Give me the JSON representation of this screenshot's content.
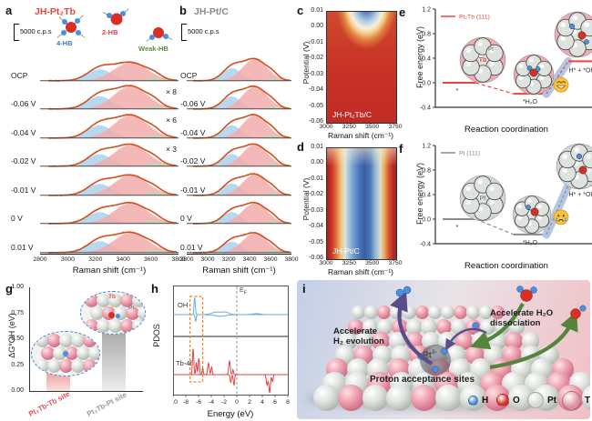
{
  "chart_data": [
    {
      "id": "a",
      "panel": "a",
      "type": "line",
      "title": "JH-Pt₂Tb",
      "title_color": "#e8463c",
      "scale_bar": "5000 c.p.s",
      "molecule_labels": [
        {
          "text": "4-HB",
          "color": "#3a7bd0"
        },
        {
          "text": "2-HB",
          "color": "#e8463c"
        },
        {
          "text": "Weak-HB",
          "color": "#5a8f3c"
        }
      ],
      "series_labels": [
        "OCP",
        "-0.06 V",
        "-0.04 V",
        "-0.02 V",
        "-0.01 V",
        "0 V",
        "0.01 V"
      ],
      "multipliers": [
        "",
        "× 8",
        "× 6",
        "× 3",
        "",
        "",
        ""
      ],
      "components": [
        {
          "name": "4-HB",
          "center": 3230,
          "width": 88,
          "color": "#a9d2ee"
        },
        {
          "name": "2-HB",
          "center": 3455,
          "width": 122,
          "color": "#f2abac"
        },
        {
          "name": "Weak-HB",
          "center": 3625,
          "width": 50,
          "color": "#bcd9ab"
        }
      ],
      "row_amplitudes": [
        [
          0.5,
          0.8,
          0.13
        ],
        [
          0.56,
          1.0,
          0.15
        ],
        [
          0.56,
          1.0,
          0.15
        ],
        [
          0.53,
          0.95,
          0.14
        ],
        [
          0.5,
          0.88,
          0.13
        ],
        [
          0.5,
          0.9,
          0.13
        ],
        [
          0.5,
          0.88,
          0.13
        ]
      ],
      "x_ticks": [
        "2800",
        "3000",
        "3200",
        "3400",
        "3600",
        "3800"
      ],
      "xlabel": "Raman shift (cm⁻¹)",
      "envelope_color": "#d4521e"
    },
    {
      "id": "b",
      "panel": "b",
      "type": "line",
      "title": "JH-Pt/C",
      "title_color": "#8a8a8a",
      "scale_bar": "5000 c.p.s",
      "series_labels": [
        "OCP",
        "-0.06 V",
        "-0.04 V",
        "-0.02 V",
        "-0.01 V",
        "0 V",
        "0.01 V"
      ],
      "multipliers": [
        "",
        "",
        "",
        "",
        "",
        "",
        ""
      ],
      "components": [
        {
          "name": "4-HB",
          "center": 3230,
          "width": 88,
          "color": "#a9d2ee"
        },
        {
          "name": "2-HB",
          "center": 3450,
          "width": 118,
          "color": "#f2abac"
        },
        {
          "name": "Weak-HB",
          "center": 3620,
          "width": 50,
          "color": "#bcd9ab"
        }
      ],
      "row_amplitudes": [
        [
          0.55,
          0.95,
          0.14
        ],
        [
          0.55,
          0.97,
          0.14
        ],
        [
          0.56,
          1.0,
          0.15
        ],
        [
          0.54,
          0.95,
          0.14
        ],
        [
          0.52,
          0.92,
          0.13
        ],
        [
          0.5,
          0.9,
          0.13
        ],
        [
          0.48,
          0.85,
          0.12
        ]
      ],
      "x_ticks": [
        "2800",
        "3000",
        "3200",
        "3400",
        "3600",
        "3800"
      ],
      "xlabel": "Raman shift (cm⁻¹)",
      "envelope_color": "#d4521e"
    },
    {
      "id": "c",
      "panel": "c",
      "type": "heatmap",
      "inner_label": "JH-Pt₂Tb/C",
      "ylabel": "Potential (V)",
      "y_ticks": [
        "0.01",
        "0.00",
        "-0.01",
        "-0.02",
        "-0.03",
        "-0.04",
        "-0.05",
        "-0.06"
      ],
      "x_ticks": [
        "3000",
        "3250",
        "3500",
        "3750"
      ],
      "xlabel": "Raman shift (cm⁻¹)",
      "x_range": [
        3000,
        3750
      ],
      "y_range": [
        0.01,
        -0.06
      ],
      "description": "high Raman intensity (red) everywhere except a low-intensity blue region near 3400-3500 cm⁻¹ at potentials above about -0.01 V"
    },
    {
      "id": "d",
      "panel": "d",
      "type": "heatmap",
      "inner_label": "JH-Pt/C",
      "ylabel": "Potential (V)",
      "y_ticks": [
        "0.01",
        "0.00",
        "-0.01",
        "-0.02",
        "-0.03",
        "-0.04",
        "-0.05",
        "-0.06"
      ],
      "x_ticks": [
        "3000",
        "3250",
        "3500",
        "3750"
      ],
      "xlabel": "Raman shift (cm⁻¹)",
      "x_range": [
        3000,
        3750
      ],
      "y_range": [
        0.01,
        -0.06
      ],
      "description": "vertical low-intensity blue band near 3300-3500 cm⁻¹ persisting over the whole potential window, red at both wavenumber edges"
    },
    {
      "id": "e",
      "panel": "e",
      "type": "line",
      "legend": "Pt₂Tb (111)",
      "line_color": "#e8463c",
      "ylabel": "Free energy (eV)",
      "ylim": [
        -0.4,
        1.2
      ],
      "y_ticks": [
        "1.2",
        "0.8",
        "0.4",
        "0.0",
        "-0.4"
      ],
      "xlabel": "Reaction coordination",
      "steps": [
        {
          "label": "*",
          "energy": 0.0
        },
        {
          "label": "*H₂O",
          "energy": -0.18
        },
        {
          "label": "H* + *OH",
          "energy": 0.35
        }
      ],
      "cluster_labels": {
        "tb": "Tb",
        "pt": "Pt"
      },
      "emoji": "happy-face"
    },
    {
      "id": "f",
      "panel": "f",
      "type": "line",
      "legend": "Pt (111)",
      "line_color": "#8c8c8c",
      "ylabel": "Free energy (eV)",
      "ylim": [
        -0.4,
        1.2
      ],
      "y_ticks": [
        "1.2",
        "0.8",
        "0.4",
        "0.0",
        "-0.4"
      ],
      "xlabel": "Reaction coordination",
      "steps": [
        {
          "label": "*",
          "energy": 0.0
        },
        {
          "label": "*H₂O",
          "energy": -0.25
        },
        {
          "label": "H* + *OH",
          "energy": 0.55
        }
      ],
      "cluster_labels": {
        "pt": "Pt"
      },
      "emoji": "crying-face"
    },
    {
      "id": "g",
      "panel": "g",
      "type": "bar",
      "categories": [
        "Pt₂Tb-Tb site",
        "Pt₂Tb-Pt site"
      ],
      "values": [
        0.25,
        0.6
      ],
      "value_labels": [
        "0.25",
        "0.60"
      ],
      "bar_colors_top": [
        "#ee8a8a",
        "#a8a8a8"
      ],
      "bar_colors_bottom": [
        "#fbdede",
        "#ececec"
      ],
      "label_colors": [
        "#e05252",
        "#9a9a9a"
      ],
      "ylabel": "ΔG*OH (eV)",
      "ylim": [
        0,
        1
      ],
      "y_ticks": [
        "1.00",
        "0.75",
        "0.50",
        "0.25",
        "0.00"
      ],
      "inset_labels": {
        "tb": "Tb",
        "pt": "Pt"
      },
      "inset1_rows": [
        "PTPPT",
        "TPTPP",
        "PPTPT"
      ],
      "inset2_rows": [
        "TPPTP",
        "PTPTP",
        "TPPTP"
      ]
    },
    {
      "id": "h",
      "panel": "h",
      "type": "line",
      "ylabel": "PDOS",
      "xlabel": "Energy (eV)",
      "xlim": [
        -10,
        8
      ],
      "x_ticks": [
        "-10",
        "-8",
        "-6",
        "-4",
        "-2",
        "0",
        "2",
        "4",
        "6",
        "8"
      ],
      "ef_label": {
        "main": "E",
        "sub": "F"
      },
      "series": [
        {
          "name": "OH",
          "color": "#6aabdc",
          "peaks_up": [
            {
              "c": -6.62,
              "a": 0.85,
              "w": 0.1
            },
            {
              "c": -3.1,
              "a": 0.13,
              "w": 0.8
            },
            {
              "c": -1.7,
              "a": 0.1,
              "w": 0.5
            },
            {
              "c": 3.1,
              "a": 0.05,
              "w": 0.6
            }
          ],
          "peaks_down": [
            {
              "c": -6.45,
              "a": 0.55,
              "w": 0.09
            },
            {
              "c": -2.6,
              "a": 0.14,
              "w": 0.9
            }
          ]
        },
        {
          "name": "Tb-4f",
          "color": "#e04343",
          "peaks_up": [
            {
              "c": -6.85,
              "a": 0.95,
              "w": 0.1
            },
            {
              "c": -6.35,
              "a": 0.45,
              "w": 0.09
            },
            {
              "c": -5.95,
              "a": 0.6,
              "w": 0.1
            },
            {
              "c": -5.35,
              "a": 0.25,
              "w": 0.09
            },
            {
              "c": -4.45,
              "a": 0.42,
              "w": 0.12
            },
            {
              "c": -3.95,
              "a": 0.28,
              "w": 0.1
            },
            {
              "c": -1.15,
              "a": 0.5,
              "w": 0.12
            },
            {
              "c": -0.6,
              "a": 0.18,
              "w": 0.08
            }
          ],
          "peaks_down": [
            {
              "c": -0.95,
              "a": 0.4,
              "w": 0.1
            },
            {
              "c": -0.45,
              "a": 0.55,
              "w": 0.1
            },
            {
              "c": 4.75,
              "a": 0.55,
              "w": 0.12
            },
            {
              "c": 5.15,
              "a": 0.95,
              "w": 0.12
            },
            {
              "c": 5.6,
              "a": 0.35,
              "w": 0.1
            }
          ]
        }
      ],
      "highlight_box_x": [
        -7.35,
        -5.35
      ]
    }
  ],
  "panel_i": {
    "label": "i",
    "texts": {
      "h2_evolution": "Accelerate\nH₂ evolution",
      "h2o_dissociation": "Accelerate H₂O\ndissociation",
      "proton_sites": "Proton acceptance sites",
      "pt_site_base": "Pt",
      "pt_site_sup": "δ-"
    },
    "legend": [
      {
        "label": "H",
        "color": "#4a8fe0",
        "size": 9
      },
      {
        "label": "O",
        "color": "#d93025",
        "size": 12
      },
      {
        "label": "Pt",
        "color": "#d6dad6",
        "size": 16
      },
      {
        "label": "Tb",
        "color": "#dc8fa0",
        "size": 19
      }
    ],
    "lattice_rows": [
      "PPTPPTPPTPPT",
      "TPPTPPTPTPPP",
      "PPTPTPPTPPTP",
      "PTPPTPPTPTPP",
      "TPPTPTPPTPPT",
      "PPTPPTPTPPTP",
      "PTPPTPPTPPTP"
    ],
    "atom_colors": {
      "H": "#4a8fe0",
      "O": "#d93025",
      "Pt": "#d6dad6",
      "Tb": "#dc8fa0"
    },
    "arrow_colors": {
      "purple": "#5b4b8a",
      "green": "#55843c"
    }
  }
}
